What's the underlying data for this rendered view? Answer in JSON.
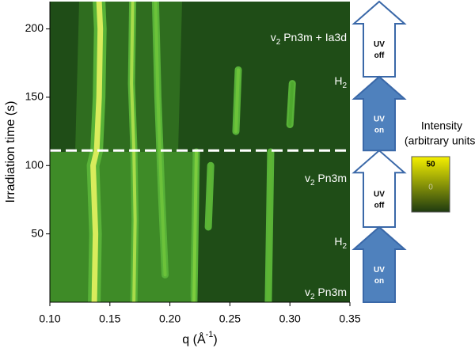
{
  "chart_data": {
    "type": "contour",
    "xlabel": {
      "text": "q (Å",
      "sup": "-1",
      "end": ")"
    },
    "ylabel": "Irradiation time (s)",
    "xlim": [
      0.1,
      0.35
    ],
    "xticks": [
      {
        "value": 0.1,
        "label": "0.10"
      },
      0.15,
      {
        "value": 0.2,
        "label": "0.20"
      },
      0.25,
      {
        "value": 0.3,
        "label": "0.30"
      },
      0.35
    ],
    "ylim": [
      0,
      220
    ],
    "yticks": [
      50,
      100,
      150,
      200
    ],
    "reference_line": 111,
    "ridges": [
      {
        "color": "#d9ec5c",
        "x": [
          0.137,
          0.138,
          0.136,
          0.139,
          0.141,
          0.142,
          0.141
        ],
        "y": [
          0,
          50,
          100,
          111,
          150,
          200,
          220
        ]
      },
      {
        "color": "#a8dc4a",
        "x": [
          0.17,
          0.171,
          0.17,
          0.168,
          0.169
        ],
        "y": [
          0,
          60,
          111,
          160,
          220
        ]
      },
      {
        "color": "#6cc23a",
        "x": [
          0.196,
          0.193,
          0.19,
          0.188
        ],
        "y": [
          20,
          80,
          150,
          220
        ]
      },
      {
        "color": "#7ccc3e",
        "x": [
          0.22,
          0.222
        ],
        "y": [
          0,
          110
        ]
      },
      {
        "color": "#5db434",
        "x": [
          0.232,
          0.234
        ],
        "y": [
          55,
          100
        ]
      },
      {
        "color": "#6cc23a",
        "x": [
          0.255,
          0.257
        ],
        "y": [
          125,
          170
        ]
      },
      {
        "color": "#5db434",
        "x": [
          0.282,
          0.284
        ],
        "y": [
          0,
          110
        ]
      },
      {
        "color": "#4ea82e",
        "x": [
          0.3,
          0.302
        ],
        "y": [
          130,
          160
        ]
      }
    ],
    "annotations": [
      {
        "main": "v",
        "sub": "2",
        "rest": " Pn3m + Ia3d"
      },
      {
        "main": "H",
        "sub": "2"
      },
      {
        "main": "v",
        "sub": "2",
        "rest": " Pn3m"
      },
      {
        "main": "H",
        "sub": "2"
      },
      {
        "main": "v",
        "sub": "2",
        "rest": " Pn3m"
      }
    ],
    "phases": [
      {
        "lines": [
          "UV",
          "off"
        ],
        "start": 165,
        "end": 220,
        "fill": "#ffffff"
      },
      {
        "lines": [
          "UV",
          "on"
        ],
        "start": 111,
        "end": 165,
        "fill": "#4f81bd"
      },
      {
        "lines": [
          "UV",
          "off"
        ],
        "start": 55,
        "end": 111,
        "fill": "#ffffff"
      },
      {
        "lines": [
          "UV",
          "on"
        ],
        "start": 0,
        "end": 55,
        "fill": "#4f81bd"
      }
    ],
    "colorbar": {
      "title": [
        "Intensity",
        "(arbitrary units)"
      ],
      "max": 50,
      "min": 0,
      "colors": [
        "#f5f000",
        "#1e3a10"
      ]
    }
  }
}
